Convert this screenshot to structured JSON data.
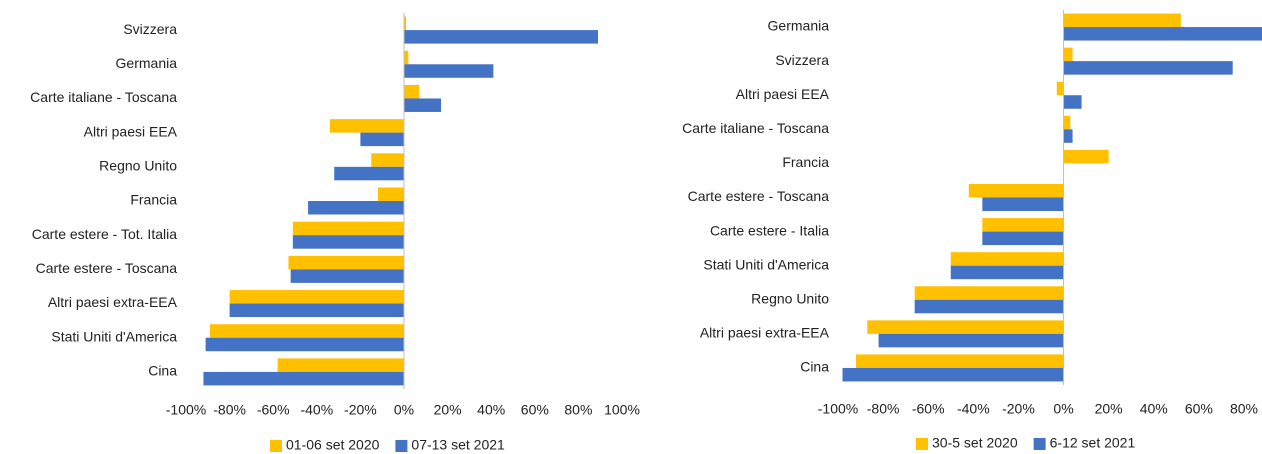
{
  "chart_data": [
    {
      "type": "bar",
      "orientation": "horizontal",
      "categories": [
        "Svizzera",
        "Germania",
        "Carte italiane - Toscana",
        "Altri paesi EEA",
        "Regno Unito",
        "Francia",
        "Carte estere  - Tot. Italia",
        "Carte estere  - Toscana",
        "Altri paesi extra-EEA",
        "Stati Uniti d'America",
        "Cina"
      ],
      "series": [
        {
          "name": "01-06 set 2020",
          "color": "#FFC000",
          "values": [
            1,
            2,
            7,
            -34,
            -15,
            -12,
            -51,
            -53,
            -80,
            -89,
            -58
          ]
        },
        {
          "name": "07-13 set 2021",
          "color": "#4472C4",
          "values": [
            89,
            41,
            17,
            -20,
            -32,
            -44,
            -51,
            -52,
            -80,
            -91,
            -92
          ]
        }
      ],
      "xlim": [
        -100,
        100
      ],
      "xticks": [
        {
          "value": -100,
          "label": "-100%"
        },
        {
          "value": -80,
          "label": "-80%"
        },
        {
          "value": -60,
          "label": "-60%"
        },
        {
          "value": -40,
          "label": "-40%"
        },
        {
          "value": -20,
          "label": "-20%"
        },
        {
          "value": 0,
          "label": "0%"
        },
        {
          "value": 20,
          "label": "20%"
        },
        {
          "value": 40,
          "label": "40%"
        },
        {
          "value": 60,
          "label": "60%"
        },
        {
          "value": 80,
          "label": "80%"
        },
        {
          "value": 100,
          "label": "100%"
        }
      ]
    },
    {
      "type": "bar",
      "orientation": "horizontal",
      "categories": [
        "Germania",
        "Svizzera",
        "Altri paesi EEA",
        "Carte italiane - Toscana",
        "Francia",
        "Carte estere  - Toscana",
        "Carte estere - Italia",
        "Stati Uniti d'America",
        "Regno Unito",
        "Altri paesi extra-EEA",
        "Cina"
      ],
      "series": [
        {
          "name": "30-5 set 2020",
          "color": "#FFC000",
          "values": [
            52,
            4,
            -3,
            3,
            20,
            -42,
            -36,
            -50,
            -66,
            -87,
            -92
          ]
        },
        {
          "name": "6-12 set 2021",
          "color": "#4472C4",
          "values": [
            88,
            75,
            8,
            4,
            0,
            -36,
            -36,
            -50,
            -66,
            -82,
            -98
          ]
        }
      ],
      "xlim": [
        -100,
        88
      ],
      "xticks": [
        {
          "value": -100,
          "label": "-100%"
        },
        {
          "value": -80,
          "label": "-80%"
        },
        {
          "value": -60,
          "label": "-60%"
        },
        {
          "value": -40,
          "label": "-40%"
        },
        {
          "value": -20,
          "label": "-20%"
        },
        {
          "value": 0,
          "label": "0%"
        },
        {
          "value": 20,
          "label": "20%"
        },
        {
          "value": 40,
          "label": "40%"
        },
        {
          "value": 60,
          "label": "60%"
        },
        {
          "value": 80,
          "label": "80%"
        }
      ]
    }
  ]
}
